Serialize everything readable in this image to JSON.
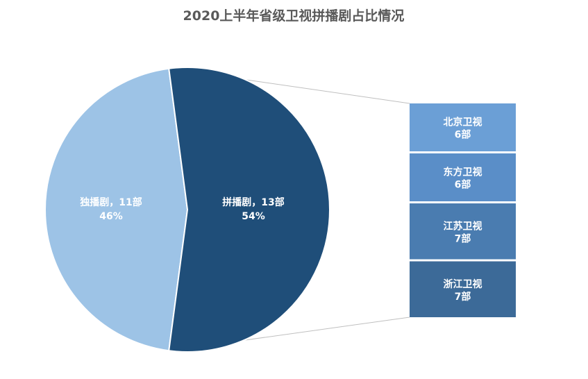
{
  "chart_data": {
    "type": "pie",
    "title": "2020上半年省级卫视拼播剧占比情况",
    "slices": [
      {
        "name": "拼播剧",
        "count_label": "13部",
        "label": "拼播剧，13部",
        "value": 13,
        "percent_label": "54%",
        "color": "#1f4e79"
      },
      {
        "name": "独播剧",
        "count_label": "11部",
        "label": "独播剧，11部",
        "value": 11,
        "percent_label": "46%",
        "color": "#9dc3e6"
      }
    ],
    "breakdown_of": "拼播剧",
    "breakdown": [
      {
        "name": "北京卫视",
        "value_label": "6部",
        "value": 6,
        "color": "#6b9fd6"
      },
      {
        "name": "东方卫视",
        "value_label": "6部",
        "value": 6,
        "color": "#5a8ec8"
      },
      {
        "name": "江苏卫视",
        "value_label": "7部",
        "value": 7,
        "color": "#4a7cb0"
      },
      {
        "name": "浙江卫视",
        "value_label": "7部",
        "value": 7,
        "color": "#3c6a98"
      }
    ],
    "connector_color": "#bfbfbf",
    "slice_border_color": "#ffffff"
  }
}
